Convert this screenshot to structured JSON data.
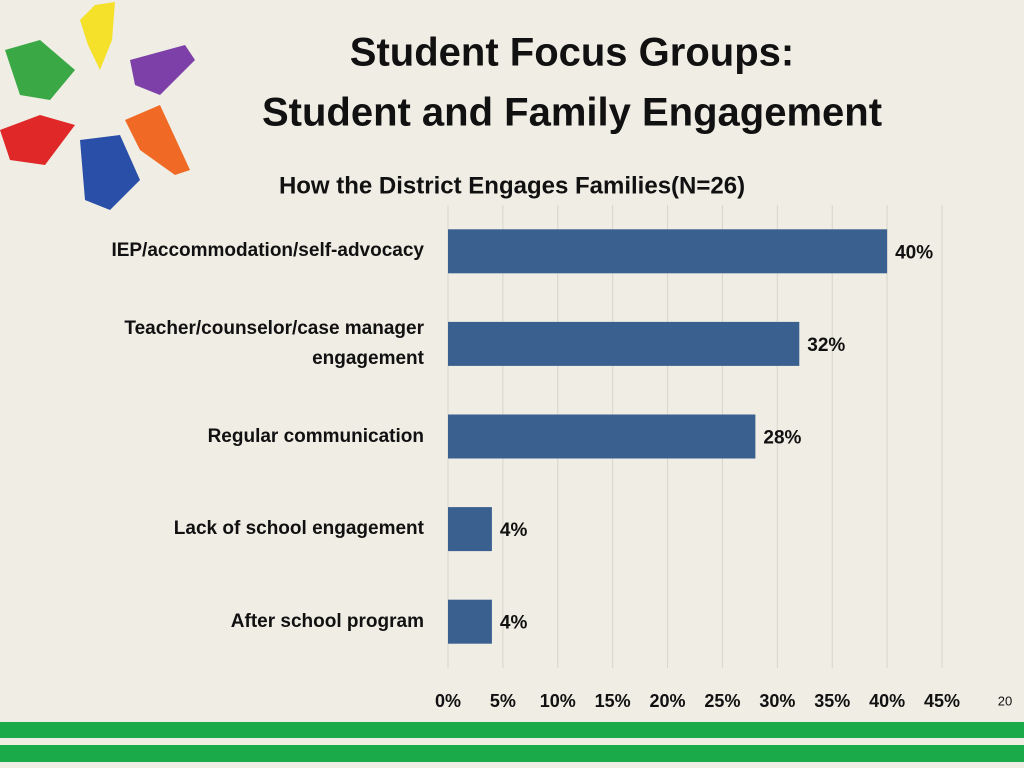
{
  "title": [
    "Student Focus Groups:",
    "Student and Family Engagement"
  ],
  "page_number": "20",
  "chart_data": {
    "type": "hbar",
    "title": "How the District Engages Families(N=26)",
    "categories": [
      "IEP/accommodation/self-advocacy",
      "Teacher/counselor/case manager engagement",
      "Regular communication",
      "Lack of school engagement",
      "After school program"
    ],
    "values": [
      40,
      32,
      28,
      4,
      4
    ],
    "value_labels": [
      "40%",
      "32%",
      "28%",
      "4%",
      "4%"
    ],
    "color": "#3a6090",
    "xlim": [
      0,
      45
    ],
    "xticks": [
      {
        "value": 0,
        "label": "0%"
      },
      {
        "value": 5,
        "label": "5%"
      },
      {
        "value": 10,
        "label": "10%"
      },
      {
        "value": 15,
        "label": "15%"
      },
      {
        "value": 20,
        "label": "20%"
      },
      {
        "value": 25,
        "label": "25%"
      },
      {
        "value": 30,
        "label": "30%"
      },
      {
        "value": 35,
        "label": "35%"
      },
      {
        "value": 40,
        "label": "40%"
      },
      {
        "value": 45,
        "label": "45%"
      }
    ],
    "grid": true
  }
}
